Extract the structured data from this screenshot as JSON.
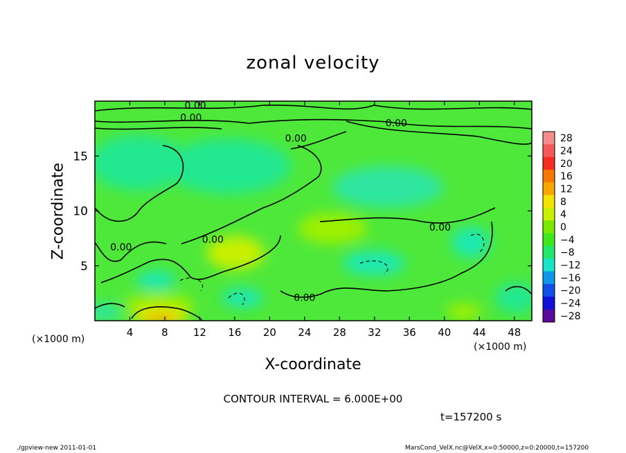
{
  "chart_data": {
    "type": "heatmap",
    "title": "zonal velocity",
    "xlabel": "X-coordinate",
    "ylabel": "Z-coordinate",
    "x_unit": "(×1000 m)",
    "x_ticks": [
      4,
      8,
      12,
      16,
      20,
      24,
      28,
      32,
      36,
      40,
      44,
      48
    ],
    "y_ticks": [
      5,
      10,
      15
    ],
    "xlim": [
      0,
      50
    ],
    "ylim": [
      0,
      20
    ],
    "colorbar_levels": [
      "28",
      "24",
      "20",
      "16",
      "12",
      "8",
      "4",
      "0",
      "−4",
      "−8",
      "−12",
      "−16",
      "−20",
      "−24",
      "−28"
    ],
    "colorbar_colors": [
      "#f48c8c",
      "#f45a5a",
      "#f52d1e",
      "#f77800",
      "#f7a700",
      "#f3e400",
      "#c7f000",
      "#7be800",
      "#3ee81a",
      "#22e86e",
      "#18e5c8",
      "#1096e8",
      "#1050e8",
      "#1010d8",
      "#5a0a9a"
    ],
    "contour_labels": [
      {
        "text": "0.00",
        "x": 11.5,
        "y": 19.3
      },
      {
        "text": "0.00",
        "x": 11.0,
        "y": 18.2
      },
      {
        "text": "0.00",
        "x": 34.5,
        "y": 17.7
      },
      {
        "text": "0.00",
        "x": 23.0,
        "y": 16.3
      },
      {
        "text": "0.00",
        "x": 13.5,
        "y": 7.1
      },
      {
        "text": "0.00",
        "x": 3.0,
        "y": 6.4
      },
      {
        "text": "0.00",
        "x": 39.5,
        "y": 8.2
      },
      {
        "text": "0.00",
        "x": 24.0,
        "y": 1.8
      }
    ],
    "contour_interval": "CONTOUR INTERVAL = 6.000E+00"
  },
  "annotations": {
    "time": "t=157200 s",
    "footer_left": "./gpview-new  2011-01-01",
    "footer_right": "MarsCond_VelX.nc@VelX,x=0:50000,z=0:20000,t=157200"
  }
}
